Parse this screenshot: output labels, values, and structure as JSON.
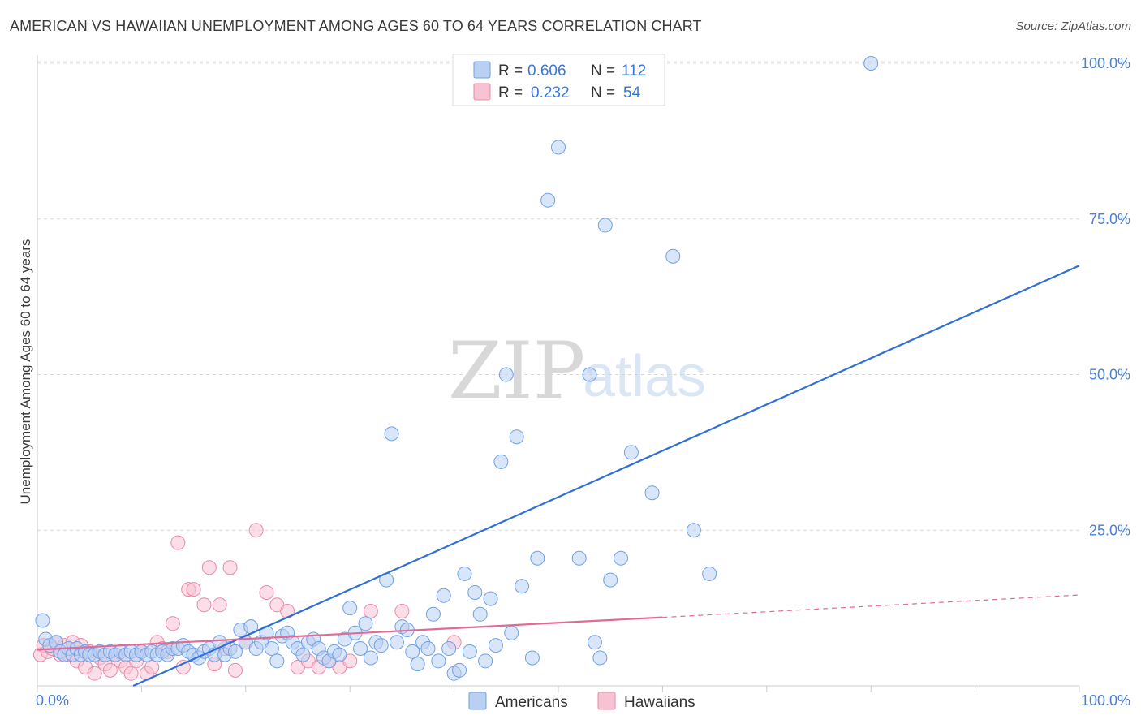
{
  "header": {
    "title": "AMERICAN VS HAWAIIAN UNEMPLOYMENT AMONG AGES 60 TO 64 YEARS CORRELATION CHART",
    "source": "Source: ZipAtlas.com"
  },
  "watermark": {
    "zip": "ZIP",
    "atlas": "atlas"
  },
  "legend": {
    "r_label": "R =",
    "n_label": "N =",
    "series": [
      {
        "name": "Americans",
        "r": "0.606",
        "n": "112",
        "color": "#6fa1e6",
        "fill": "#b9d0f3"
      },
      {
        "name": "Hawaiians",
        "r": "0.232",
        "n": "54",
        "color": "#e98aa8",
        "fill": "#f7c3d3"
      }
    ]
  },
  "colors": {
    "american_line": "#2f6fd6",
    "hawaiian_line": "#e06b95",
    "grid": "#d8d8d8",
    "tick_text": "#4a7fd4"
  },
  "chart_data": {
    "type": "scatter",
    "title": "AMERICAN VS HAWAIIAN UNEMPLOYMENT AMONG AGES 60 TO 64 YEARS CORRELATION CHART",
    "xlabel": "",
    "ylabel": "Unemployment Among Ages 60 to 64 years",
    "xlim": [
      0,
      100
    ],
    "ylim": [
      0,
      100
    ],
    "x_tick_labels": [
      "0.0%",
      "100.0%"
    ],
    "y_ticks": [
      {
        "value": 25,
        "label": "25.0%"
      },
      {
        "value": 50,
        "label": "50.0%"
      },
      {
        "value": 75,
        "label": "75.0%"
      },
      {
        "value": 100,
        "label": "100.0%"
      }
    ],
    "grid": true,
    "legend_position": "top-center",
    "series": [
      {
        "name": "Americans",
        "color": "#6fa1e6",
        "points": [
          [
            0.5,
            10.5
          ],
          [
            0.8,
            7.5
          ],
          [
            1.2,
            6.5
          ],
          [
            1.8,
            7
          ],
          [
            2.2,
            5.5
          ],
          [
            2.6,
            5
          ],
          [
            3,
            6
          ],
          [
            3.4,
            5
          ],
          [
            3.8,
            6
          ],
          [
            4.2,
            5
          ],
          [
            4.6,
            5.5
          ],
          [
            5,
            5
          ],
          [
            5.5,
            5
          ],
          [
            6,
            5.5
          ],
          [
            6.5,
            5
          ],
          [
            7,
            5.5
          ],
          [
            7.5,
            5
          ],
          [
            8,
            5.5
          ],
          [
            8.5,
            5
          ],
          [
            9,
            5.5
          ],
          [
            9.5,
            5
          ],
          [
            10,
            5.5
          ],
          [
            10.5,
            5
          ],
          [
            11,
            5.5
          ],
          [
            11.5,
            5
          ],
          [
            12,
            5.5
          ],
          [
            12.5,
            5
          ],
          [
            13,
            6
          ],
          [
            13.5,
            6
          ],
          [
            14,
            6.5
          ],
          [
            14.5,
            5.5
          ],
          [
            15,
            5
          ],
          [
            15.5,
            4.5
          ],
          [
            16,
            5.5
          ],
          [
            16.5,
            6
          ],
          [
            17,
            5
          ],
          [
            17.5,
            7
          ],
          [
            18,
            5
          ],
          [
            18.5,
            6
          ],
          [
            19,
            5.5
          ],
          [
            19.5,
            9
          ],
          [
            20,
            7
          ],
          [
            20.5,
            9.5
          ],
          [
            21,
            6
          ],
          [
            21.5,
            7
          ],
          [
            22,
            8.5
          ],
          [
            22.5,
            6
          ],
          [
            23,
            4
          ],
          [
            23.5,
            8
          ],
          [
            24,
            8.5
          ],
          [
            24.5,
            7
          ],
          [
            25,
            6
          ],
          [
            25.5,
            5
          ],
          [
            26,
            7
          ],
          [
            26.5,
            7.5
          ],
          [
            27,
            6
          ],
          [
            27.5,
            4.5
          ],
          [
            28,
            4
          ],
          [
            28.5,
            5.5
          ],
          [
            29,
            5
          ],
          [
            29.5,
            7.5
          ],
          [
            30,
            12.5
          ],
          [
            30.5,
            8.5
          ],
          [
            31,
            6
          ],
          [
            31.5,
            10
          ],
          [
            32,
            4.5
          ],
          [
            32.5,
            7
          ],
          [
            33,
            6.5
          ],
          [
            33.5,
            17
          ],
          [
            34,
            40.5
          ],
          [
            34.5,
            7
          ],
          [
            35,
            9.5
          ],
          [
            35.5,
            9
          ],
          [
            36,
            5.5
          ],
          [
            36.5,
            3.5
          ],
          [
            37,
            7
          ],
          [
            37.5,
            6
          ],
          [
            38,
            11.5
          ],
          [
            38.5,
            4
          ],
          [
            39,
            14.5
          ],
          [
            39.5,
            6
          ],
          [
            40,
            2
          ],
          [
            40.5,
            2.5
          ],
          [
            41,
            18
          ],
          [
            41.5,
            5.5
          ],
          [
            42,
            15
          ],
          [
            42.5,
            11.5
          ],
          [
            43,
            4
          ],
          [
            43.5,
            14
          ],
          [
            44,
            6.5
          ],
          [
            44.5,
            36
          ],
          [
            45,
            50
          ],
          [
            45.5,
            8.5
          ],
          [
            46,
            40
          ],
          [
            46.5,
            16
          ],
          [
            47.5,
            4.5
          ],
          [
            48,
            20.5
          ],
          [
            49,
            78
          ],
          [
            50,
            86.5
          ],
          [
            52,
            20.5
          ],
          [
            53,
            50
          ],
          [
            53.5,
            7
          ],
          [
            54,
            4.5
          ],
          [
            54.5,
            74
          ],
          [
            55,
            17
          ],
          [
            56,
            20.5
          ],
          [
            57,
            37.5
          ],
          [
            58,
            100
          ],
          [
            59,
            31
          ],
          [
            61,
            69
          ],
          [
            63,
            25
          ],
          [
            64.5,
            18
          ],
          [
            80,
            100
          ]
        ]
      },
      {
        "name": "Hawaiians",
        "color": "#e98aa8",
        "points": [
          [
            0.3,
            5
          ],
          [
            0.6,
            6.5
          ],
          [
            1,
            5.5
          ],
          [
            1.4,
            6
          ],
          [
            1.8,
            7
          ],
          [
            2.2,
            5
          ],
          [
            2.6,
            6.5
          ],
          [
            3,
            5
          ],
          [
            3.4,
            7
          ],
          [
            3.8,
            4
          ],
          [
            4.2,
            6.5
          ],
          [
            4.6,
            3
          ],
          [
            5,
            5.5
          ],
          [
            5.5,
            2
          ],
          [
            6,
            4.5
          ],
          [
            6.5,
            3.5
          ],
          [
            7,
            2.5
          ],
          [
            7.5,
            5
          ],
          [
            8,
            4
          ],
          [
            8.5,
            3
          ],
          [
            9,
            2
          ],
          [
            9.5,
            4
          ],
          [
            10,
            5.5
          ],
          [
            10.5,
            2
          ],
          [
            11,
            3
          ],
          [
            11.5,
            7
          ],
          [
            12,
            6
          ],
          [
            12.5,
            5.5
          ],
          [
            13,
            10
          ],
          [
            13.5,
            23
          ],
          [
            14,
            3
          ],
          [
            14.5,
            15.5
          ],
          [
            15,
            15.5
          ],
          [
            16,
            13
          ],
          [
            16.5,
            19
          ],
          [
            17,
            3.5
          ],
          [
            17.5,
            13
          ],
          [
            18,
            6
          ],
          [
            18.5,
            19
          ],
          [
            19,
            2.5
          ],
          [
            20,
            7
          ],
          [
            21,
            25
          ],
          [
            22,
            15
          ],
          [
            23,
            13
          ],
          [
            24,
            12
          ],
          [
            25,
            3
          ],
          [
            26,
            4
          ],
          [
            27,
            3
          ],
          [
            28,
            4
          ],
          [
            29,
            3
          ],
          [
            30,
            4
          ],
          [
            32,
            12
          ],
          [
            35,
            12
          ],
          [
            40,
            7
          ]
        ]
      }
    ],
    "trendlines": [
      {
        "name": "Americans",
        "x": [
          9.2,
          100
        ],
        "y": [
          0,
          67.5
        ]
      },
      {
        "name": "Hawaiians",
        "x": [
          0,
          60
        ],
        "y": [
          5.8,
          11
        ],
        "dashed_extension_to": [
          100,
          14.6
        ]
      }
    ]
  }
}
